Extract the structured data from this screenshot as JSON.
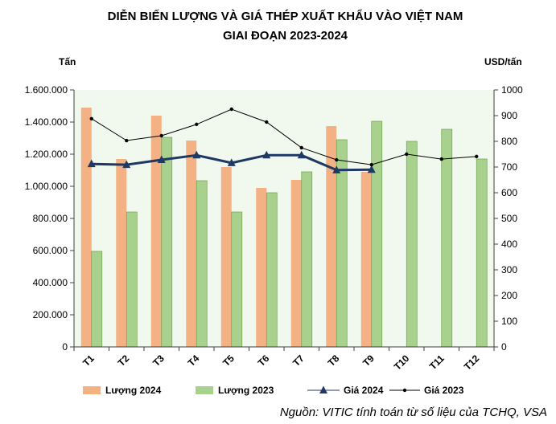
{
  "chart_data": {
    "type": "bar",
    "title_lines": [
      "DIỄN BIẾN LƯỢNG VÀ GIÁ THÉP XUẤT KHẨU VÀO VIỆT NAM",
      "GIAI ĐOẠN 2023-2024"
    ],
    "categories": [
      "T1",
      "T2",
      "T3",
      "T4",
      "T5",
      "T6",
      "T7",
      "T8",
      "T9",
      "T10",
      "T11",
      "T12"
    ],
    "y_left": {
      "label": "Tấn",
      "min": 0,
      "max": 1600000,
      "tick_labels": [
        "0",
        "200.000",
        "400.000",
        "600.000",
        "800.000",
        "1.000.000",
        "1.200.000",
        "1.400.000",
        "1.600.000"
      ]
    },
    "y_right": {
      "label": "USD/tấn",
      "min": 0,
      "max": 1000,
      "tick_labels": [
        "0",
        "100",
        "200",
        "300",
        "400",
        "500",
        "600",
        "700",
        "800",
        "900",
        "1000"
      ]
    },
    "series": [
      {
        "name": "Lượng 2024",
        "type": "bar",
        "axis": "left",
        "color": "#F4B183",
        "values": [
          1490000,
          1170000,
          1440000,
          1285000,
          1120000,
          990000,
          1040000,
          1375000,
          1090000,
          null,
          null,
          null
        ]
      },
      {
        "name": "Lượng 2023",
        "type": "bar",
        "axis": "left",
        "color": "#A9D18E",
        "values": [
          595000,
          840000,
          1305000,
          1035000,
          840000,
          960000,
          1090000,
          1290000,
          1405000,
          1280000,
          1355000,
          1170000
        ]
      },
      {
        "name": "Giá 2024",
        "type": "line",
        "axis": "right",
        "color": "#1F3864",
        "marker": "triangle",
        "values": [
          712,
          709,
          728,
          746,
          716,
          746,
          746,
          688,
          690,
          null,
          null,
          null
        ]
      },
      {
        "name": "Giá 2023",
        "type": "line",
        "axis": "right",
        "color": "#000000",
        "marker": "dot",
        "values": [
          888,
          803,
          822,
          866,
          925,
          875,
          775,
          728,
          709,
          750,
          731,
          741
        ]
      }
    ],
    "plot_background": "#F1F9EE",
    "grid": false,
    "legend_position": "bottom"
  },
  "source": "Nguồn: VITIC tính toán từ số liệu của TCHQ, VSA"
}
